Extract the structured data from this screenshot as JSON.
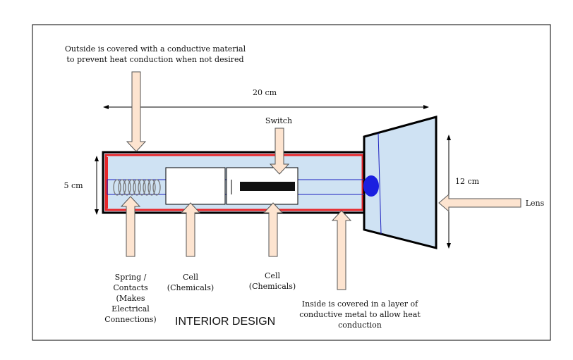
{
  "diagram": {
    "title": "INTERIOR DESIGN",
    "labels": {
      "outside_note": "Outside is covered with a conductive material\nto prevent heat conduction when not desired",
      "length": "20 cm",
      "switch": "Switch",
      "height": "5 cm",
      "head_height": "12 cm",
      "lens": "Lens",
      "spring": "Spring /\nContacts\n(Makes\nElectrical\nConnections)",
      "cell1": "Cell\n(Chemicals)",
      "cell2": "Cell\n(Chemicals)",
      "inside_note": "Inside is covered in a layer of\nconductive metal to allow heat\nconduction"
    },
    "colors": {
      "body_fill": "#cfe2f3",
      "inner_lining": "#e8262a",
      "arrow_fill": "#fde4d0",
      "bulb": "#1b1fe0",
      "wire": "#1b1fbf",
      "outline": "#000000"
    }
  }
}
